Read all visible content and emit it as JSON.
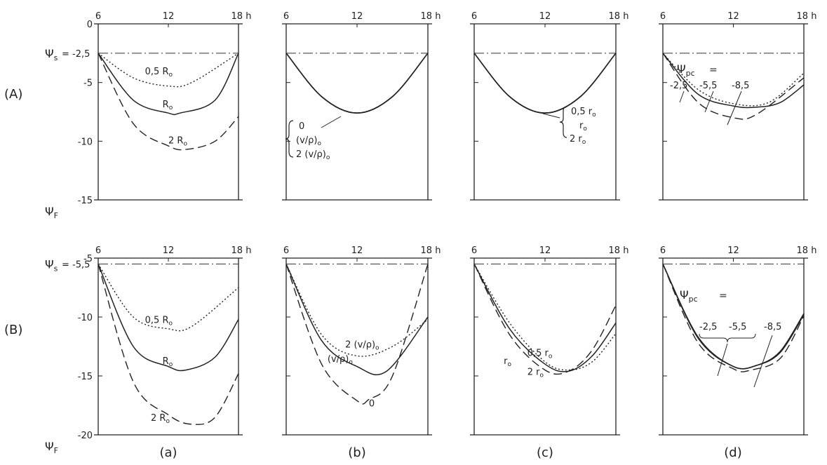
{
  "figure": {
    "x_ticks": [
      "6",
      "12",
      "18 h"
    ],
    "psi_f_label": "Ψ",
    "psi_f_sub": "F",
    "psi_s_label": "Ψ",
    "psi_s_sub": "s",
    "psi_pc_label": "Ψ",
    "psi_pc_sub": "pc",
    "psi_pc_eq": "=",
    "row_labels": [
      "(A)",
      "(B)"
    ],
    "col_labels": [
      "(a)",
      "(b)",
      "(c)",
      "(d)"
    ]
  },
  "chart_data": [
    {
      "type": "line",
      "row": "A",
      "col": "a",
      "x_range": [
        6,
        18
      ],
      "ylim": [
        0,
        -15
      ],
      "y_ticks": [
        "0",
        "-5",
        "-10",
        "-15"
      ],
      "psi_s_value": "= -2,5",
      "psi_s": -2.5,
      "series": [
        {
          "name": "0,5 R",
          "name_sub": "o",
          "style": "dotted",
          "x": [
            6,
            9,
            12,
            14,
            18
          ],
          "y": [
            -2.5,
            -4.6,
            -5.3,
            -5.0,
            -2.5
          ],
          "label_pos": [
            10,
            -4.3
          ]
        },
        {
          "name": "R",
          "name_sub": "o",
          "style": "solid",
          "x": [
            6,
            9,
            12,
            13,
            16,
            18
          ],
          "y": [
            -2.5,
            -6.5,
            -7.6,
            -7.6,
            -6.5,
            -2.5
          ],
          "label_pos": [
            11.5,
            -7.1
          ]
        },
        {
          "name": "2 R",
          "name_sub": "o",
          "style": "dashed",
          "x": [
            6,
            9,
            12,
            13.5,
            16,
            18
          ],
          "y": [
            -2.5,
            -8.5,
            -10.4,
            -10.7,
            -10.0,
            -7.9
          ],
          "label_pos": [
            12,
            -10.2
          ]
        }
      ]
    },
    {
      "type": "line",
      "row": "A",
      "col": "b",
      "x_range": [
        6,
        18
      ],
      "ylim": [
        0,
        -15
      ],
      "psi_s": -2.5,
      "series": [
        {
          "name": "0",
          "style": "solid",
          "x": [
            6,
            9,
            12,
            15,
            18
          ],
          "y": [
            -2.5,
            -6.2,
            -7.6,
            -6.2,
            -2.5
          ]
        },
        {
          "name": "(v/ρ)",
          "name_sub": "o",
          "style": "solid",
          "x": [
            6,
            9,
            12,
            15,
            18
          ],
          "y": [
            -2.5,
            -6.2,
            -7.6,
            -6.2,
            -2.5
          ]
        },
        {
          "name": "2 (v/ρ)",
          "name_sub": "o",
          "style": "solid",
          "x": [
            6,
            9,
            12,
            15,
            18
          ],
          "y": [
            -2.5,
            -6.2,
            -7.6,
            -6.2,
            -2.5
          ]
        }
      ]
    },
    {
      "type": "line",
      "row": "A",
      "col": "c",
      "x_range": [
        6,
        18
      ],
      "ylim": [
        0,
        -15
      ],
      "psi_s": -2.5,
      "series": [
        {
          "name": "0,5 r",
          "name_sub": "o",
          "style": "solid",
          "x": [
            6,
            9,
            12,
            15,
            18
          ],
          "y": [
            -2.5,
            -6.2,
            -7.6,
            -6.2,
            -2.5
          ]
        },
        {
          "name": "r",
          "name_sub": "o",
          "style": "solid",
          "x": [
            6,
            9,
            12,
            15,
            18
          ],
          "y": [
            -2.5,
            -6.2,
            -7.6,
            -6.2,
            -2.5
          ]
        },
        {
          "name": "2 r",
          "name_sub": "o",
          "style": "solid",
          "x": [
            6,
            9,
            12,
            15,
            18
          ],
          "y": [
            -2.5,
            -6.2,
            -7.6,
            -6.2,
            -2.5
          ]
        }
      ]
    },
    {
      "type": "line",
      "row": "A",
      "col": "d",
      "x_range": [
        6,
        18
      ],
      "ylim": [
        0,
        -15
      ],
      "psi_s": -2.5,
      "series": [
        {
          "name": "-2,5",
          "style": "dotted",
          "x": [
            6,
            9,
            12,
            15,
            18
          ],
          "y": [
            -2.5,
            -5.6,
            -6.8,
            -6.7,
            -4.2
          ]
        },
        {
          "name": "-5,5",
          "style": "solid",
          "x": [
            6,
            9,
            12,
            14,
            16,
            18
          ],
          "y": [
            -2.5,
            -6.0,
            -7.0,
            -7.1,
            -6.7,
            -5.2
          ]
        },
        {
          "name": "-8,5",
          "style": "dashed",
          "x": [
            6,
            9,
            12,
            14,
            18
          ],
          "y": [
            -2.5,
            -6.7,
            -8.0,
            -7.7,
            -4.6
          ]
        }
      ]
    },
    {
      "type": "line",
      "row": "B",
      "col": "a",
      "x_range": [
        6,
        18
      ],
      "ylim": [
        -5,
        -20
      ],
      "y_ticks": [
        "-5",
        "-10",
        "-15",
        "-20"
      ],
      "psi_s_value": "= -5,5",
      "psi_s": -5.5,
      "series": [
        {
          "name": "0,5 R",
          "name_sub": "o",
          "style": "dotted",
          "x": [
            6,
            9,
            12,
            14,
            18
          ],
          "y": [
            -5.5,
            -10.0,
            -11.0,
            -10.8,
            -7.5
          ],
          "label_pos": [
            10,
            -10.5
          ]
        },
        {
          "name": "R",
          "name_sub": "o",
          "style": "solid",
          "x": [
            6,
            9,
            12,
            13.5,
            16,
            18
          ],
          "y": [
            -5.5,
            -12.5,
            -14.2,
            -14.5,
            -13.4,
            -10.2
          ],
          "label_pos": [
            11.5,
            -14
          ]
        },
        {
          "name": "2 R",
          "name_sub": "o",
          "style": "dashed",
          "x": [
            6,
            9,
            12,
            14,
            16,
            18
          ],
          "y": [
            -5.5,
            -15.5,
            -18.3,
            -19.1,
            -18.5,
            -14.8
          ],
          "label_pos": [
            10.5,
            -18.8
          ]
        }
      ]
    },
    {
      "type": "line",
      "row": "B",
      "col": "b",
      "x_range": [
        6,
        18
      ],
      "ylim": [
        -5,
        -20
      ],
      "psi_s": -5.5,
      "series": [
        {
          "name": "2 (v/ρ)",
          "name_sub": "o",
          "style": "dotted",
          "x": [
            6,
            9,
            12,
            15,
            18
          ],
          "y": [
            -5.5,
            -11.5,
            -13.3,
            -12.5,
            -10.2
          ],
          "label_pos": [
            11,
            -12.6
          ]
        },
        {
          "name": "(v/ρ)",
          "name_sub": "o",
          "style": "solid",
          "x": [
            6,
            9,
            12,
            14.5,
            18
          ],
          "y": [
            -5.5,
            -12.0,
            -14.2,
            -14.6,
            -10.0
          ],
          "label_pos": [
            9.5,
            -13.8
          ]
        },
        {
          "name": "0",
          "style": "dashed",
          "x": [
            6,
            9,
            12,
            13,
            15,
            18
          ],
          "y": [
            -5.5,
            -14.0,
            -17.1,
            -17.0,
            -15.0,
            -5.5
          ],
          "label_pos": [
            13,
            -17.6
          ]
        }
      ]
    },
    {
      "type": "line",
      "row": "B",
      "col": "c",
      "x_range": [
        6,
        18
      ],
      "ylim": [
        -5,
        -20
      ],
      "psi_s": -5.5,
      "series": [
        {
          "name": "0,5 r",
          "name_sub": "o",
          "style": "dotted",
          "x": [
            6,
            9,
            12,
            14,
            16,
            18
          ],
          "y": [
            -5.5,
            -10.5,
            -13.8,
            -14.5,
            -13.8,
            -11.4
          ],
          "label_pos": [
            10.5,
            -13.3
          ]
        },
        {
          "name": "r",
          "name_sub": "o",
          "style": "solid",
          "x": [
            6,
            9,
            12,
            14,
            16,
            18
          ],
          "y": [
            -5.5,
            -11.0,
            -14.0,
            -14.6,
            -13.3,
            -10.5
          ],
          "label_pos": [
            8.5,
            -14
          ]
        },
        {
          "name": "2 r",
          "name_sub": "o",
          "style": "dashed",
          "x": [
            6,
            9,
            12,
            14,
            16,
            18
          ],
          "y": [
            -5.5,
            -11.5,
            -14.5,
            -14.6,
            -12.8,
            -9.0
          ],
          "label_pos": [
            10.5,
            -14.9
          ]
        }
      ]
    },
    {
      "type": "line",
      "row": "B",
      "col": "d",
      "x_range": [
        6,
        18
      ],
      "ylim": [
        -5,
        -20
      ],
      "psi_s": -5.5,
      "series": [
        {
          "name": "-2,5",
          "style": "solid",
          "x": [
            6,
            9,
            12,
            14,
            16,
            18
          ],
          "y": [
            -5.5,
            -11.8,
            -14.2,
            -14.1,
            -13.0,
            -9.8
          ]
        },
        {
          "name": "-5,5",
          "style": "solid",
          "x": [
            6,
            9,
            12,
            14,
            16,
            18
          ],
          "y": [
            -5.5,
            -11.7,
            -14.2,
            -14.1,
            -12.9,
            -9.7
          ]
        },
        {
          "name": "-8,5",
          "style": "dashed",
          "x": [
            6,
            9,
            12,
            13.5,
            16,
            18
          ],
          "y": [
            -5.5,
            -12.2,
            -14.4,
            -14.5,
            -13.5,
            -9.9
          ]
        }
      ]
    }
  ]
}
